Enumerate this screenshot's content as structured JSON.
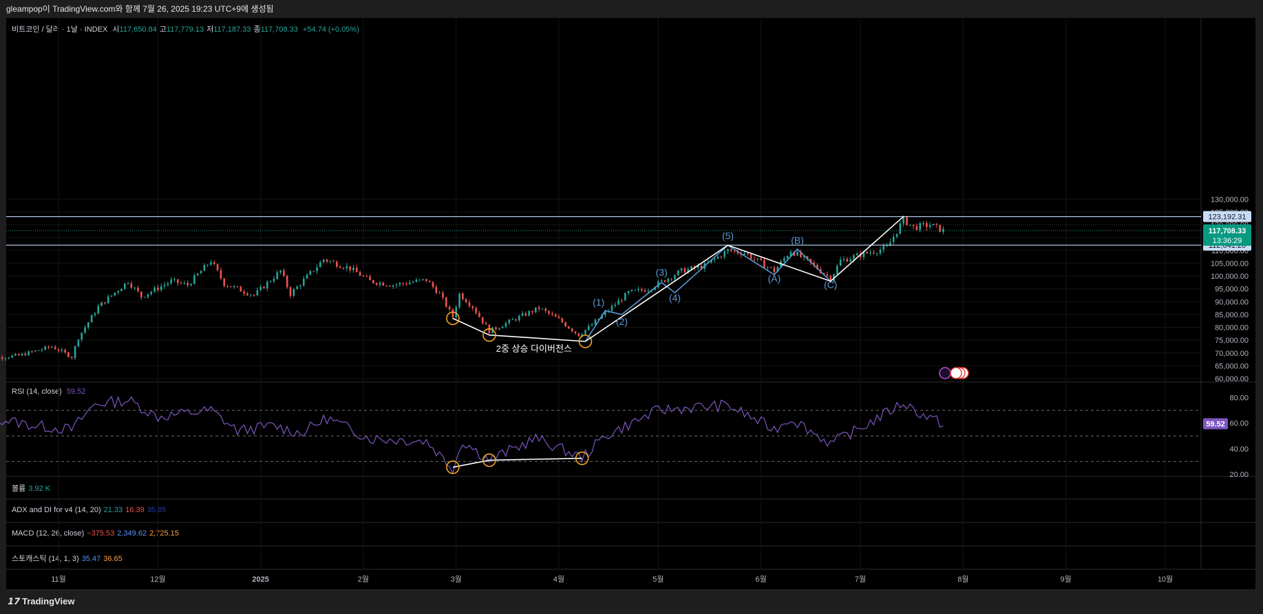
{
  "header": {
    "attribution": "gleampop이 TradingView.com와 함께 7월 26, 2025 19:23 UTC+9에 생성됨",
    "symbol": "비트코인 / 달러 · 1날 · INDEX",
    "ohlc": [
      {
        "k": "시",
        "v": "117,650.84"
      },
      {
        "k": "고",
        "v": "117,779.13"
      },
      {
        "k": "저",
        "v": "117,187.33"
      },
      {
        "k": "종",
        "v": "117,708.33"
      }
    ],
    "change": "+54.74 (+0.05%)"
  },
  "colors": {
    "up": "#26a69a",
    "down": "#ef5350",
    "wave": "#5b9bd5",
    "rsi": "#7e57c2",
    "hline": "#b2c6e6",
    "circle": "#f5a623"
  },
  "chart_data": [
    {
      "type": "candlestick",
      "panel": "price",
      "ylim": [
        60000,
        130000
      ],
      "y_ticks": [
        "60,000.00",
        "65,000.00",
        "70,000.00",
        "75,000.00",
        "80,000.00",
        "85,000.00",
        "90,000.00",
        "95,000.00",
        "100,000.00",
        "105,000.00",
        "110,000.00",
        "115,000.00",
        "120,000.00",
        "125,000.00",
        "130,000.00"
      ],
      "x_ticks": [
        "11월",
        "12월",
        "2025",
        "2월",
        "3월",
        "4월",
        "5월",
        "6월",
        "7월",
        "8월",
        "9월",
        "10월"
      ],
      "anchor_x": [
        "2024-11-01",
        "2024-12-01",
        "2025-01-01",
        "2025-02-01",
        "2025-03-01",
        "2025-04-01",
        "2025-05-01",
        "2025-06-01",
        "2025-07-01",
        "2025-08-01",
        "2025-09-01",
        "2025-10-01"
      ],
      "closes_path": [
        [
          "2024-10-08",
          67500
        ],
        [
          "2024-10-20",
          69000
        ],
        [
          "2024-10-30",
          72500
        ],
        [
          "2024-11-05",
          68500
        ],
        [
          "2024-11-07",
          76000
        ],
        [
          "2024-11-13",
          88000
        ],
        [
          "2024-11-22",
          98000
        ],
        [
          "2024-11-26",
          92000
        ],
        [
          "2024-12-05",
          98000
        ],
        [
          "2024-12-10",
          96500
        ],
        [
          "2024-12-17",
          106000
        ],
        [
          "2024-12-21",
          97000
        ],
        [
          "2024-12-30",
          92500
        ],
        [
          "2025-01-07",
          102000
        ],
        [
          "2025-01-10",
          93000
        ],
        [
          "2025-01-20",
          106500
        ],
        [
          "2025-01-28",
          103000
        ],
        [
          "2025-02-03",
          98000
        ],
        [
          "2025-02-10",
          96500
        ],
        [
          "2025-02-20",
          98500
        ],
        [
          "2025-02-24",
          93000
        ],
        [
          "2025-02-28",
          84000
        ],
        [
          "2025-03-02",
          93000
        ],
        [
          "2025-03-06",
          88000
        ],
        [
          "2025-03-11",
          78500
        ],
        [
          "2025-03-20",
          84000
        ],
        [
          "2025-03-26",
          87500
        ],
        [
          "2025-04-01",
          83000
        ],
        [
          "2025-04-07",
          77000
        ],
        [
          "2025-04-10",
          80000
        ],
        [
          "2025-04-22",
          93500
        ],
        [
          "2025-04-28",
          95000
        ],
        [
          "2025-05-08",
          102000
        ],
        [
          "2025-05-15",
          104000
        ],
        [
          "2025-05-22",
          110000
        ],
        [
          "2025-05-27",
          109000
        ],
        [
          "2025-06-05",
          102000
        ],
        [
          "2025-06-10",
          110000
        ],
        [
          "2025-06-17",
          104000
        ],
        [
          "2025-06-22",
          99000
        ],
        [
          "2025-06-25",
          106000
        ],
        [
          "2025-07-03",
          109000
        ],
        [
          "2025-07-09",
          111000
        ],
        [
          "2025-07-14",
          122000
        ],
        [
          "2025-07-17",
          119000
        ],
        [
          "2025-07-22",
          120000
        ],
        [
          "2025-07-26",
          117708
        ]
      ],
      "current_price": "117,708.33",
      "countdown": "13:36:29",
      "levels": [
        {
          "value": 123192.31,
          "label": "123,192.31"
        },
        {
          "value": 112041.2,
          "label": "112,041.20"
        }
      ],
      "annotations": {
        "divergence_text": "2중 상승 다이버전스",
        "divergence_points": [
          [
            "2025-02-28",
            83500
          ],
          [
            "2025-03-11",
            77000
          ],
          [
            "2025-04-09",
            74500
          ]
        ],
        "impulse_white": [
          [
            "2025-04-09",
            74500
          ],
          [
            "2025-05-22",
            112000
          ],
          [
            "2025-06-22",
            98000
          ],
          [
            "2025-07-14",
            123200
          ]
        ],
        "impulse_white_b": [
          [
            "2025-05-22",
            112000
          ],
          [
            "2025-06-22",
            98000
          ]
        ],
        "wave_lines": [
          [
            "2025-04-09",
            74500
          ],
          [
            "2025-04-15",
            86500
          ],
          [
            "2025-04-20",
            85000
          ],
          [
            "2025-05-02",
            97500
          ],
          [
            "2025-05-06",
            93500
          ],
          [
            "2025-05-22",
            112000
          ],
          [
            "2025-06-05",
            100500
          ],
          [
            "2025-06-12",
            110500
          ],
          [
            "2025-06-22",
            98000
          ]
        ],
        "wave_labels": [
          {
            "t": "(1)",
            "d": "2025-04-13",
            "y": 88500
          },
          {
            "t": "(2)",
            "d": "2025-04-20",
            "y": 81000
          },
          {
            "t": "(3)",
            "d": "2025-05-02",
            "y": 100200
          },
          {
            "t": "(4)",
            "d": "2025-05-06",
            "y": 90200
          },
          {
            "t": "(5)",
            "d": "2025-05-22",
            "y": 114300
          },
          {
            "t": "(A)",
            "d": "2025-06-05",
            "y": 97700
          },
          {
            "t": "(B)",
            "d": "2025-06-12",
            "y": 112600
          },
          {
            "t": "(C)",
            "d": "2025-06-22",
            "y": 95300
          }
        ]
      }
    },
    {
      "type": "line",
      "panel": "rsi",
      "title": "RSI (14, close)",
      "value": "59.52",
      "ylim": [
        15,
        85
      ],
      "y_ticks": [
        "20.00",
        "40.00",
        "60.00",
        "80.00"
      ],
      "levels": [
        70,
        50,
        30
      ],
      "points": [
        [
          "2024-10-08",
          66
        ],
        [
          "2024-10-25",
          58
        ],
        [
          "2024-11-05",
          55
        ],
        [
          "2024-11-12",
          75
        ],
        [
          "2024-11-22",
          78
        ],
        [
          "2024-12-01",
          65
        ],
        [
          "2024-12-17",
          70
        ],
        [
          "2024-12-25",
          54
        ],
        [
          "2025-01-05",
          58
        ],
        [
          "2025-01-13",
          52
        ],
        [
          "2025-01-21",
          64
        ],
        [
          "2025-02-03",
          48
        ],
        [
          "2025-02-20",
          46
        ],
        [
          "2025-02-28",
          25
        ],
        [
          "2025-03-03",
          46
        ],
        [
          "2025-03-11",
          31
        ],
        [
          "2025-03-25",
          48
        ],
        [
          "2025-04-08",
          33
        ],
        [
          "2025-04-15",
          50
        ],
        [
          "2025-05-01",
          70
        ],
        [
          "2025-05-10",
          72
        ],
        [
          "2025-05-22",
          74
        ],
        [
          "2025-06-05",
          55
        ],
        [
          "2025-06-10",
          64
        ],
        [
          "2025-06-22",
          44
        ],
        [
          "2025-07-01",
          56
        ],
        [
          "2025-07-14",
          76
        ],
        [
          "2025-07-20",
          66
        ],
        [
          "2025-07-26",
          59.5
        ]
      ],
      "divergence_points": [
        [
          "2025-02-28",
          25.5
        ],
        [
          "2025-03-11",
          31
        ],
        [
          "2025-04-08",
          32.5
        ]
      ]
    }
  ],
  "indicators": [
    {
      "name": "볼륨",
      "values": [
        {
          "v": "3.92 K",
          "c": "#26a69a"
        }
      ]
    },
    {
      "name": "ADX and DI for v4 (14, 20)",
      "values": [
        {
          "v": "21.33",
          "c": "#26a69a"
        },
        {
          "v": "16.39",
          "c": "#ef5350"
        },
        {
          "v": "35.85",
          "c": "#2a3d99"
        }
      ]
    },
    {
      "name": "MACD (12, 26, close)",
      "values": [
        {
          "v": "−375.53",
          "c": "#ef5350"
        },
        {
          "v": "2,349.62",
          "c": "#5b8ff9"
        },
        {
          "v": "2,725.15",
          "c": "#ff9f43"
        }
      ]
    },
    {
      "name": "스토캐스틱 (14, 1, 3)",
      "values": [
        {
          "v": "35.47",
          "c": "#5b8ff9"
        },
        {
          "v": "36.65",
          "c": "#ff9f43"
        }
      ]
    }
  ],
  "footer": {
    "brand": "TradingView"
  }
}
